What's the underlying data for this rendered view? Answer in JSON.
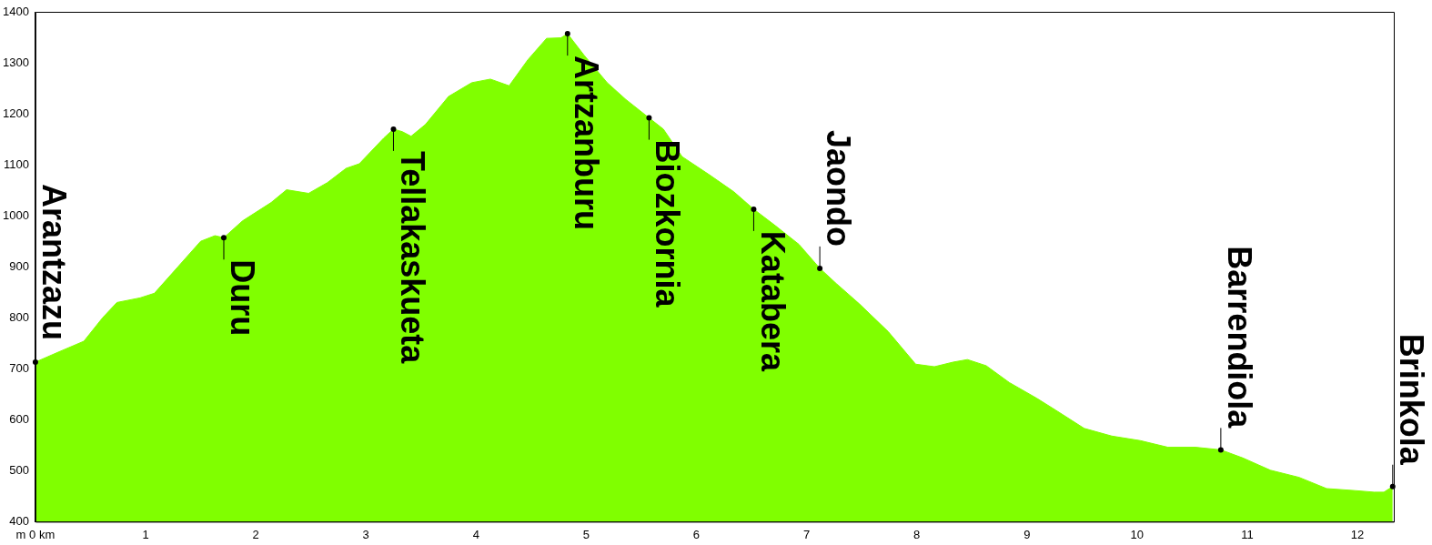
{
  "chart_data": {
    "type": "area",
    "color": "#80ff00",
    "x": [
      0,
      0.19,
      0.44,
      0.61,
      0.74,
      0.95,
      1.08,
      1.29,
      1.5,
      1.63,
      1.71,
      1.88,
      2.14,
      2.28,
      2.48,
      2.65,
      2.82,
      2.94,
      3.16,
      3.25,
      3.33,
      3.41,
      3.54,
      3.75,
      3.96,
      4.13,
      4.3,
      4.47,
      4.64,
      4.77,
      4.83,
      4.98,
      5.19,
      5.36,
      5.57,
      5.7,
      5.87,
      6.12,
      6.34,
      6.52,
      6.72,
      6.93,
      7.12,
      7.27,
      7.48,
      7.74,
      7.99,
      8.16,
      8.33,
      8.46,
      8.63,
      8.84,
      9.09,
      9.26,
      9.52,
      9.77,
      10.03,
      10.28,
      10.53,
      10.76,
      10.96,
      11.21,
      11.47,
      11.72,
      11.98,
      12.15,
      12.24,
      12.32
    ],
    "values": [
      713,
      731,
      754,
      800,
      830,
      839,
      848,
      899,
      950,
      961,
      957,
      990,
      1026,
      1051,
      1044,
      1065,
      1093,
      1102,
      1152,
      1170,
      1165,
      1156,
      1179,
      1234,
      1261,
      1268,
      1255,
      1306,
      1348,
      1349,
      1357,
      1315,
      1261,
      1228,
      1192,
      1170,
      1116,
      1080,
      1047,
      1013,
      980,
      944,
      897,
      867,
      827,
      773,
      709,
      704,
      713,
      718,
      706,
      673,
      642,
      619,
      583,
      568,
      559,
      546,
      546,
      541,
      525,
      501,
      487,
      465,
      461,
      458,
      458,
      469
    ],
    "xlim": [
      0,
      12.33
    ],
    "ylim": [
      400,
      1400
    ],
    "xticks": [
      {
        "value": 0,
        "label": "m 0 km"
      },
      1,
      2,
      3,
      4,
      5,
      6,
      7,
      8,
      9,
      10,
      11,
      12
    ],
    "yticks": [
      400,
      500,
      600,
      700,
      800,
      900,
      1000,
      1100,
      1200,
      1300,
      1400
    ],
    "grid": false,
    "legend": false,
    "annotations": [
      {
        "text": "Arantzazu",
        "x": 0,
        "y": 713
      },
      {
        "text": "Duru",
        "x": 1.71,
        "y": 957
      },
      {
        "text": "Tellakaskueta",
        "x": 3.25,
        "y": 1170
      },
      {
        "text": "Artzanburu",
        "x": 4.83,
        "y": 1357
      },
      {
        "text": "Biozkornia",
        "x": 5.57,
        "y": 1192
      },
      {
        "text": "Katabera",
        "x": 6.52,
        "y": 1013
      },
      {
        "text": "Jaondo",
        "x": 7.12,
        "y": 897
      },
      {
        "text": "Barrendiola",
        "x": 10.76,
        "y": 541
      },
      {
        "text": "Brinkola",
        "x": 12.32,
        "y": 469
      }
    ]
  }
}
